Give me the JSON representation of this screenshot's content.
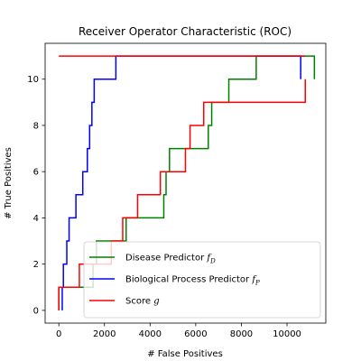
{
  "chart_data": {
    "type": "line",
    "title": "Receiver Operator Characteristic (ROC)",
    "xlabel": "# False Positives",
    "ylabel": "# True Positives",
    "xlim": [
      -600,
      11700
    ],
    "ylim": [
      -0.55,
      11.55
    ],
    "xticks": [
      0,
      2000,
      4000,
      6000,
      8000,
      10000
    ],
    "yticks": [
      0,
      2,
      4,
      6,
      8,
      10
    ],
    "legend_position": "lower right",
    "series": [
      {
        "name": "Disease Predictor",
        "name_math": "f",
        "name_sub": "D",
        "color": "#008000",
        "x": [
          0,
          0,
          1500,
          1500,
          1650,
          1650,
          2950,
          2950,
          4600,
          4600,
          4700,
          4700,
          4850,
          4850,
          6550,
          6550,
          6700,
          6700,
          7450,
          7450,
          8650,
          8650,
          10750,
          10750,
          11200,
          11200
        ],
        "y": [
          0,
          1,
          1,
          2,
          2,
          3,
          3,
          4,
          4,
          5,
          5,
          6,
          6,
          7,
          7,
          8,
          8,
          9,
          9,
          10,
          10,
          11,
          11,
          11,
          11,
          10
        ]
      },
      {
        "name": "Biological Process Predictor",
        "name_math": "f",
        "name_sub": "P",
        "color": "#0000ff",
        "x": [
          150,
          150,
          200,
          200,
          350,
          350,
          450,
          450,
          750,
          750,
          1050,
          1050,
          1250,
          1250,
          1350,
          1350,
          1450,
          1450,
          1550,
          1550,
          2500,
          2500,
          4000,
          4000,
          10600,
          10600
        ],
        "y": [
          0,
          1,
          1,
          2,
          2,
          3,
          3,
          4,
          4,
          5,
          5,
          6,
          6,
          7,
          7,
          8,
          8,
          9,
          9,
          10,
          10,
          11,
          11,
          11,
          11,
          10
        ]
      },
      {
        "name": "Score",
        "name_math": "g",
        "name_sub": "",
        "color": "#ff0000",
        "x": [
          0,
          0,
          900,
          900,
          2300,
          2300,
          2800,
          2800,
          3450,
          3450,
          4450,
          4450,
          5550,
          5550,
          5750,
          5750,
          6350,
          6350,
          10800,
          10800
        ],
        "y": [
          0,
          1,
          1,
          2,
          2,
          3,
          3,
          4,
          4,
          5,
          5,
          6,
          6,
          7,
          7,
          8,
          8,
          9,
          9,
          10
        ]
      },
      {
        "name": "",
        "color": "#ff0000",
        "x": [
          0,
          10800
        ],
        "y": [
          11,
          11
        ]
      }
    ]
  }
}
